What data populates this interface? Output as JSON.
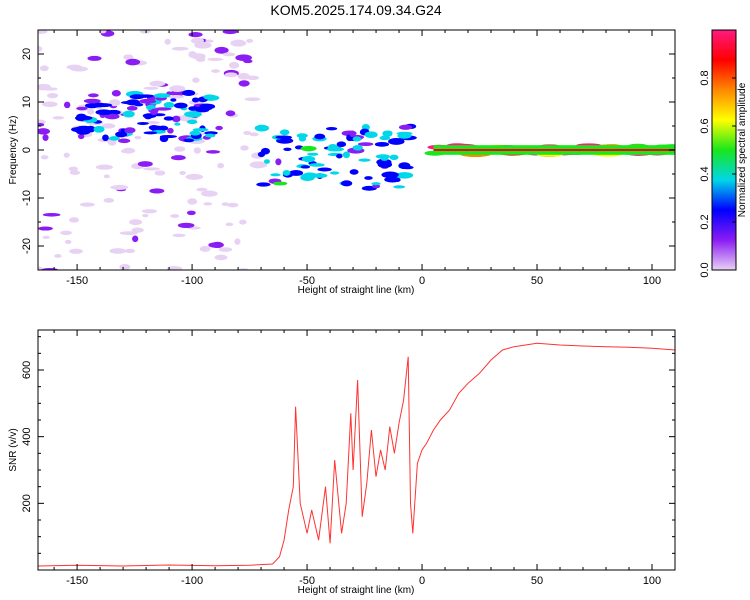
{
  "title": "KOM5.2025.174.09.34.G24",
  "chart_data": [
    {
      "type": "heatmap",
      "xlabel": "Height of straight line (km)",
      "ylabel": "Frequency (Hz)",
      "xlim": [
        -167,
        110
      ],
      "ylim": [
        -25,
        25
      ],
      "xticks": [
        -150,
        -100,
        -50,
        0,
        50,
        100
      ],
      "xtick_labels": [
        "-150",
        "-100",
        "-50",
        "0",
        "50",
        "100"
      ],
      "yticks": [
        -20,
        -10,
        0,
        10,
        20
      ],
      "ytick_labels": [
        "-20",
        "-10",
        "0",
        "10",
        "20"
      ],
      "colorbar": {
        "label": "Normalized spectral amplitude",
        "range": [
          0,
          1
        ],
        "ticks": [
          0.0,
          0.2,
          0.4,
          0.6,
          0.8
        ],
        "tick_labels": [
          "0.0",
          "0.2",
          "0.4",
          "0.6",
          "0.8"
        ],
        "colors": [
          "#e8d2f4",
          "#8a1cf4",
          "#0000ff",
          "#00d7e8",
          "#19e61c",
          "#ffff00",
          "#ff8800",
          "#ff0000",
          "#ff1a80"
        ]
      },
      "regions": [
        {
          "description": "Sparse noise speckles",
          "x": [
            -167,
            -70
          ],
          "y": [
            -25,
            25
          ],
          "amplitude": 0.05
        },
        {
          "description": "Cluster",
          "x": [
            -150,
            -90
          ],
          "y": [
            2,
            12
          ],
          "amplitude": 0.25
        },
        {
          "description": "Spread echo",
          "x": [
            -70,
            -5
          ],
          "y": [
            -8,
            5
          ],
          "amplitude": 0.3
        },
        {
          "description": "Narrow band near zero frequency",
          "x": [
            5,
            110
          ],
          "y": [
            -1,
            1
          ],
          "amplitude": 0.85
        }
      ],
      "grid": false
    },
    {
      "type": "line",
      "xlabel": "Height of straight line (km)",
      "ylabel": "SNR (v/v)",
      "xlim": [
        -167,
        110
      ],
      "ylim": [
        0,
        720
      ],
      "xticks": [
        -150,
        -100,
        -50,
        0,
        50,
        100
      ],
      "xtick_labels": [
        "-150",
        "-100",
        "-50",
        "0",
        "50",
        "100"
      ],
      "yticks": [
        200,
        400,
        600
      ],
      "ytick_labels": [
        "200",
        "400",
        "600"
      ],
      "line_color": "#ff3333",
      "series": [
        {
          "x": [
            -167,
            -150,
            -130,
            -110,
            -90,
            -75,
            -65,
            -62,
            -60,
            -58,
            -56,
            -55,
            -53,
            -50,
            -48,
            -45,
            -42,
            -40,
            -38,
            -35,
            -33,
            -31,
            -30,
            -28,
            -26,
            -24,
            -22,
            -20,
            -18,
            -16,
            -14,
            -12,
            -10,
            -8,
            -6,
            -5,
            -4,
            -2,
            0,
            2,
            5,
            8,
            12,
            16,
            20,
            25,
            30,
            35,
            40,
            50,
            60,
            70,
            80,
            90,
            100,
            110
          ],
          "y": [
            12,
            14,
            12,
            15,
            13,
            14,
            18,
            40,
            90,
            180,
            250,
            490,
            200,
            110,
            180,
            90,
            250,
            80,
            330,
            110,
            200,
            470,
            300,
            570,
            160,
            260,
            420,
            280,
            360,
            300,
            430,
            350,
            440,
            510,
            640,
            200,
            110,
            320,
            360,
            380,
            420,
            450,
            480,
            530,
            560,
            590,
            630,
            660,
            670,
            680,
            675,
            672,
            670,
            668,
            665,
            660
          ]
        }
      ],
      "grid": false
    }
  ]
}
